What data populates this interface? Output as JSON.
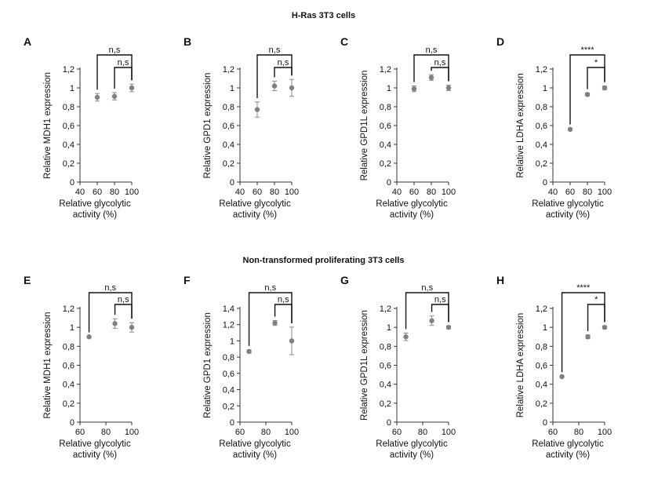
{
  "sections": [
    {
      "title": "H-Ras 3T3 cells"
    },
    {
      "title": "Non-transformed proliferating 3T3 cells"
    }
  ],
  "xlabel_lines": [
    "Relative glycolytic",
    "activity (%)"
  ],
  "chart_data": [
    {
      "panel": "A",
      "type": "scatter",
      "ylabel": "Relative MDH1 expression",
      "x": [
        60,
        80,
        100
      ],
      "y": [
        0.9,
        0.91,
        1.0
      ],
      "err": [
        0.04,
        0.04,
        0.04
      ],
      "xlim": [
        40,
        100
      ],
      "xticks": [
        40,
        60,
        80,
        100
      ],
      "ylim": [
        0,
        1.2
      ],
      "yticks": [
        0,
        0.2,
        0.4,
        0.6,
        0.8,
        1.0,
        1.2
      ],
      "yticklabels": [
        "0",
        "0,2",
        "0,4",
        "0,6",
        "0,8",
        "1",
        "1,2"
      ],
      "significance": [
        {
          "from": 60,
          "to": 100,
          "label": "n,s"
        },
        {
          "from": 80,
          "to": 100,
          "label": "n,s"
        }
      ]
    },
    {
      "panel": "B",
      "type": "scatter",
      "ylabel": "Relative GPD1 expression",
      "x": [
        60,
        80,
        100
      ],
      "y": [
        0.77,
        1.02,
        1.0
      ],
      "err": [
        0.08,
        0.05,
        0.09
      ],
      "xlim": [
        40,
        100
      ],
      "xticks": [
        40,
        60,
        80,
        100
      ],
      "ylim": [
        0,
        1.2
      ],
      "yticks": [
        0,
        0.2,
        0.4,
        0.6,
        0.8,
        1.0,
        1.2
      ],
      "yticklabels": [
        "0",
        "0,2",
        "0,4",
        "0,6",
        "0,8",
        "1",
        "1,2"
      ],
      "significance": [
        {
          "from": 60,
          "to": 100,
          "label": "n,s"
        },
        {
          "from": 80,
          "to": 100,
          "label": "n,s"
        }
      ]
    },
    {
      "panel": "C",
      "type": "scatter",
      "ylabel": "Relative GPD1L expression",
      "x": [
        60,
        80,
        100
      ],
      "y": [
        0.99,
        1.11,
        1.0
      ],
      "err": [
        0.03,
        0.03,
        0.03
      ],
      "xlim": [
        40,
        100
      ],
      "xticks": [
        40,
        60,
        80,
        100
      ],
      "ylim": [
        0,
        1.2
      ],
      "yticks": [
        0,
        0.2,
        0.4,
        0.6,
        0.8,
        1.0,
        1.2
      ],
      "yticklabels": [
        "0",
        "0,2",
        "0,4",
        "0,6",
        "0,8",
        "1",
        "1,2"
      ],
      "significance": [
        {
          "from": 60,
          "to": 100,
          "label": "n,s"
        },
        {
          "from": 80,
          "to": 100,
          "label": "n,s"
        }
      ]
    },
    {
      "panel": "D",
      "type": "scatter",
      "ylabel": "Relative LDHA expression",
      "x": [
        60,
        80,
        100
      ],
      "y": [
        0.56,
        0.93,
        1.0
      ],
      "err": [
        0.01,
        0.015,
        0.02
      ],
      "xlim": [
        40,
        100
      ],
      "xticks": [
        40,
        60,
        80,
        100
      ],
      "ylim": [
        0,
        1.2
      ],
      "yticks": [
        0,
        0.2,
        0.4,
        0.6,
        0.8,
        1.0,
        1.2
      ],
      "yticklabels": [
        "0",
        "0,2",
        "0,4",
        "0,6",
        "0,8",
        "1",
        "1,2"
      ],
      "significance": [
        {
          "from": 60,
          "to": 100,
          "label": "****"
        },
        {
          "from": 80,
          "to": 100,
          "label": "*"
        }
      ]
    },
    {
      "panel": "E",
      "type": "scatter",
      "ylabel": "Relative MDH1 expression",
      "x": [
        67,
        87,
        100
      ],
      "y": [
        0.9,
        1.04,
        1.0
      ],
      "err": [
        0.005,
        0.05,
        0.05
      ],
      "xlim": [
        60,
        100
      ],
      "xticks": [
        60,
        80,
        100
      ],
      "ylim": [
        0,
        1.2
      ],
      "yticks": [
        0,
        0.2,
        0.4,
        0.6,
        0.8,
        1.0,
        1.2
      ],
      "yticklabels": [
        "0",
        "0,2",
        "0,4",
        "0,6",
        "0,8",
        "1",
        "1,2"
      ],
      "significance": [
        {
          "from": 67,
          "to": 100,
          "label": "n,s"
        },
        {
          "from": 87,
          "to": 100,
          "label": "n,s"
        }
      ]
    },
    {
      "panel": "F",
      "type": "scatter",
      "ylabel": "Relative GPD1 expression",
      "x": [
        67,
        87,
        100
      ],
      "y": [
        0.87,
        1.22,
        1.0
      ],
      "err": [
        0.02,
        0.03,
        0.17
      ],
      "xlim": [
        60,
        100
      ],
      "xticks": [
        60,
        80,
        100
      ],
      "ylim": [
        0,
        1.4
      ],
      "yticks": [
        0,
        0.2,
        0.4,
        0.6,
        0.8,
        1.0,
        1.2,
        1.4
      ],
      "yticklabels": [
        "0",
        "0,2",
        "0,4",
        "0,6",
        "0,8",
        "1",
        "1,2",
        "1,4"
      ],
      "significance": [
        {
          "from": 67,
          "to": 100,
          "label": "n,s"
        },
        {
          "from": 87,
          "to": 100,
          "label": "n,s"
        }
      ]
    },
    {
      "panel": "G",
      "type": "scatter",
      "ylabel": "Relative GPD1L expression",
      "x": [
        67,
        87,
        100
      ],
      "y": [
        0.9,
        1.07,
        1.0
      ],
      "err": [
        0.04,
        0.05,
        0.015
      ],
      "xlim": [
        60,
        100
      ],
      "xticks": [
        60,
        80,
        100
      ],
      "ylim": [
        0,
        1.2
      ],
      "yticks": [
        0,
        0.2,
        0.4,
        0.6,
        0.8,
        1.0,
        1.2
      ],
      "yticklabels": [
        "0",
        "0,2",
        "0,4",
        "0,6",
        "0,8",
        "1",
        "1,2"
      ],
      "significance": [
        {
          "from": 67,
          "to": 100,
          "label": "n,s"
        },
        {
          "from": 87,
          "to": 100,
          "label": "n,s"
        }
      ]
    },
    {
      "panel": "H",
      "type": "scatter",
      "ylabel": "Relative LDHA expression",
      "x": [
        67,
        87,
        100
      ],
      "y": [
        0.48,
        0.9,
        1.0
      ],
      "err": [
        0.005,
        0.02,
        0.015
      ],
      "xlim": [
        60,
        100
      ],
      "xticks": [
        60,
        80,
        100
      ],
      "ylim": [
        0,
        1.2
      ],
      "yticks": [
        0,
        0.2,
        0.4,
        0.6,
        0.8,
        1.0,
        1.2
      ],
      "yticklabels": [
        "0",
        "0,2",
        "0,4",
        "0,6",
        "0,8",
        "1",
        "1,2"
      ],
      "significance": [
        {
          "from": 67,
          "to": 100,
          "label": "****"
        },
        {
          "from": 87,
          "to": 100,
          "label": "*"
        }
      ]
    }
  ]
}
